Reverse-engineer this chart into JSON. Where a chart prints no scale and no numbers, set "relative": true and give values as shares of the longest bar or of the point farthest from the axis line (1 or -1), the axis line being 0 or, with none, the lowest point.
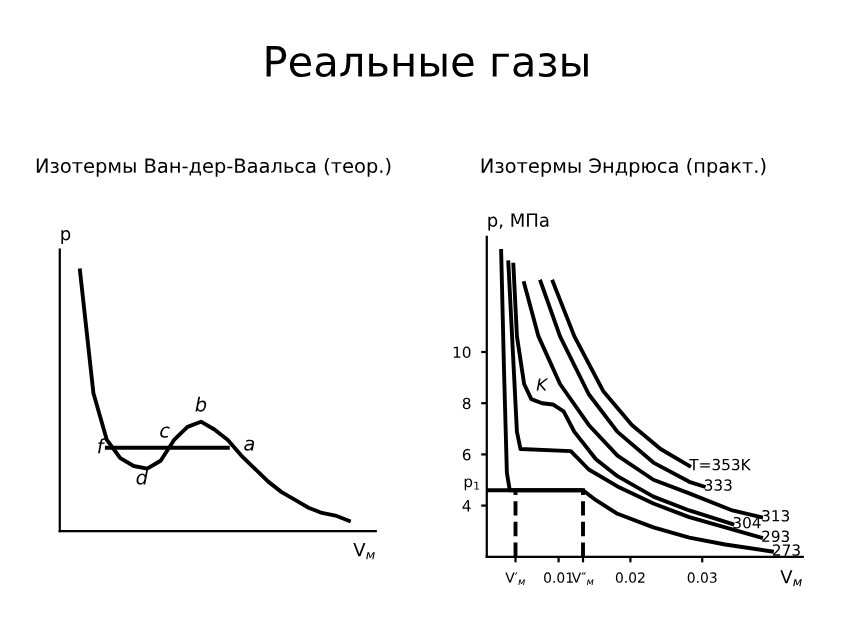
{
  "chart_data": [
    {
      "type": "line",
      "title": "Реальные газы",
      "subtitle": "Изотермы Ван-дер-Ваальса (теор.)",
      "xlabel": "V$_{м}$",
      "ylabel": "p",
      "relative": true,
      "grid": false,
      "legend": false,
      "categories": [
        null,
        null,
        null,
        null,
        null,
        null,
        null,
        null,
        null,
        null,
        null,
        null,
        null,
        null,
        null,
        null,
        null,
        null,
        null,
        null,
        null
      ],
      "series": [
        {
          "color": "#000000",
          "values": [
            1.0,
            0.53,
            0.35,
            0.28,
            0.25,
            0.24,
            0.27,
            0.35,
            0.4,
            0.42,
            0.39,
            0.35,
            0.29,
            0.24,
            0.19,
            0.15,
            0.12,
            0.09,
            0.07,
            0.06,
            0.04
          ]
        },
        {
          "color": "#000000",
          "values": [
            null,
            null,
            0.32,
            0.32,
            0.32,
            0.32,
            0.32,
            0.32,
            0.32,
            0.32,
            0.32,
            0.32,
            null,
            null,
            null,
            null,
            null,
            null,
            null,
            null,
            null
          ]
        }
      ],
      "annotations": [
        "f",
        "d",
        "c",
        "b",
        "a"
      ]
    },
    {
      "type": "line",
      "subtitle": "Изотермы Эндрюса (практ.)",
      "xlabel": "V$_{м}$",
      "ylabel": "p, МПа",
      "grid": false,
      "legend": false,
      "xlim": [
        0,
        0.044
      ],
      "ylim": [
        2,
        14.5
      ],
      "xticks": [
        {
          "value": 0.004,
          "label": "V′$_{м}$"
        },
        0.01,
        {
          "value": 0.0134,
          "label": "V″$_{м}$"
        },
        0.02,
        0.03
      ],
      "yticks": [
        4,
        6,
        8,
        10
      ],
      "ref_lines": [
        {
          "axis": "y",
          "value": 4.6,
          "label": "p$_{1}$"
        }
      ],
      "series": [
        {
          "name": "T=353K",
          "color": "#000000",
          "x": [
            0.0092,
            0.0122,
            0.0162,
            0.0202,
            0.0242,
            0.0282
          ],
          "values": [
            12.75,
            10.61,
            8.48,
            7.15,
            6.21,
            5.55
          ]
        },
        {
          "name": "333",
          "color": "#000000",
          "x": [
            0.0075,
            0.0102,
            0.0142,
            0.0182,
            0.0232,
            0.0282,
            0.0302
          ],
          "values": [
            12.75,
            10.61,
            8.35,
            6.88,
            5.68,
            4.93,
            4.75
          ]
        },
        {
          "name": "313",
          "color": "#000000",
          "x": [
            0.0052,
            0.0072,
            0.0102,
            0.0142,
            0.0182,
            0.0232,
            0.0282,
            0.0342,
            0.0382
          ],
          "values": [
            12.69,
            10.61,
            8.75,
            7.15,
            5.95,
            5.01,
            4.48,
            3.81,
            3.55
          ]
        },
        {
          "name": "304",
          "color": "#000000",
          "x": [
            0.0037,
            0.0042,
            0.0052,
            0.0062,
            0.0077,
            0.0092,
            0.0107,
            0.0122,
            0.0152,
            0.0182,
            0.0232,
            0.0282,
            0.0342
          ],
          "values": [
            13.41,
            10.61,
            8.75,
            8.16,
            8.0,
            7.95,
            7.68,
            6.88,
            5.81,
            5.15,
            4.35,
            3.81,
            3.28
          ]
        },
        {
          "name": "293",
          "color": "#000000",
          "x": [
            0.003,
            0.0042,
            0.0047,
            0.0117,
            0.0142,
            0.0182,
            0.0232,
            0.0282,
            0.0332,
            0.0382
          ],
          "values": [
            13.5,
            6.88,
            6.21,
            6.13,
            5.41,
            4.75,
            4.08,
            3.55,
            3.15,
            2.75
          ]
        },
        {
          "name": "273",
          "color": "#000000",
          "x": [
            0.002,
            0.0024,
            0.0028,
            0.0032,
            0.0134,
            0.0152,
            0.0182,
            0.0232,
            0.0282,
            0.0332,
            0.0397
          ],
          "values": [
            13.95,
            9.28,
            5.28,
            4.6,
            4.6,
            4.21,
            3.68,
            3.15,
            2.75,
            2.48,
            2.21
          ]
        },
        {
          "color": "#000000",
          "line_style": "dashed",
          "x": [
            0.004,
            0.004
          ],
          "values": [
            2,
            4.6
          ]
        },
        {
          "color": "#000000",
          "line_style": "dashed",
          "x": [
            0.0134,
            0.0134
          ],
          "values": [
            2,
            4.6
          ]
        }
      ],
      "annotations": [
        {
          "text": "K",
          "x": 0.0092,
          "y": 7.95
        }
      ]
    }
  ]
}
